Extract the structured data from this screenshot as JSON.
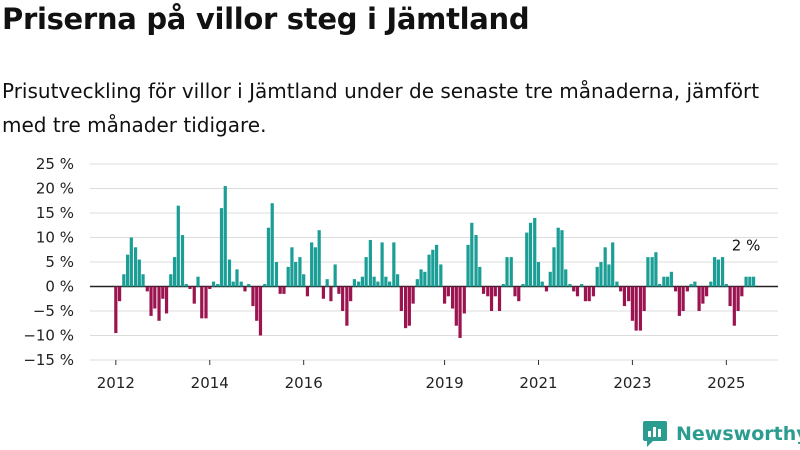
{
  "title": "Priserna på villor steg i Jämtland",
  "subtitle": "Prisutveckling för villor i Jämtland under de senaste tre månaderna, jämfört med tre månader tidigare.",
  "brand": {
    "name": "Newsworthy",
    "icon": "newsworthy-logo-icon"
  },
  "colors": {
    "positive": "#1a9e96",
    "negative": "#9b1450",
    "grid": "#dcdcdc",
    "zero_line": "#222222"
  },
  "chart_data": {
    "type": "bar",
    "unit": "%",
    "ylim": [
      -15,
      25
    ],
    "y_ticks": [
      {
        "value": 25,
        "label": "25 %"
      },
      {
        "value": 20,
        "label": "20 %"
      },
      {
        "value": 15,
        "label": "15 %"
      },
      {
        "value": 10,
        "label": "10 %"
      },
      {
        "value": 5,
        "label": "5 %"
      },
      {
        "value": 0,
        "label": "0 %"
      },
      {
        "value": -5,
        "label": "−5 %"
      },
      {
        "value": -10,
        "label": "−10 %"
      },
      {
        "value": -15,
        "label": "−15 %"
      }
    ],
    "x_ticks": [
      {
        "value": 2012,
        "label": "2012"
      },
      {
        "value": 2014,
        "label": "2014"
      },
      {
        "value": 2016,
        "label": "2016"
      },
      {
        "value": 2019,
        "label": "2019"
      },
      {
        "value": 2021,
        "label": "2021"
      },
      {
        "value": 2023,
        "label": "2023"
      },
      {
        "value": 2025,
        "label": "2025"
      }
    ],
    "x_range": [
      2011.45,
      2026.1
    ],
    "grid": true,
    "annotation": {
      "x": 2025.25,
      "y": 2,
      "label": "2 %"
    },
    "series": [
      {
        "x": 2012.0,
        "y": -9.5
      },
      {
        "x": 2012.08,
        "y": -3.0
      },
      {
        "x": 2012.17,
        "y": 2.5
      },
      {
        "x": 2012.25,
        "y": 6.5
      },
      {
        "x": 2012.33,
        "y": 10.0
      },
      {
        "x": 2012.42,
        "y": 8.0
      },
      {
        "x": 2012.5,
        "y": 5.5
      },
      {
        "x": 2012.58,
        "y": 2.5
      },
      {
        "x": 2012.67,
        "y": -1.0
      },
      {
        "x": 2012.75,
        "y": -6.0
      },
      {
        "x": 2012.83,
        "y": -4.5
      },
      {
        "x": 2012.92,
        "y": -7.0
      },
      {
        "x": 2013.0,
        "y": -2.5
      },
      {
        "x": 2013.08,
        "y": -5.5
      },
      {
        "x": 2013.17,
        "y": 2.5
      },
      {
        "x": 2013.25,
        "y": 6.0
      },
      {
        "x": 2013.33,
        "y": 16.5
      },
      {
        "x": 2013.42,
        "y": 10.5
      },
      {
        "x": 2013.5,
        "y": 0.5
      },
      {
        "x": 2013.58,
        "y": -0.5
      },
      {
        "x": 2013.67,
        "y": -3.5
      },
      {
        "x": 2013.75,
        "y": 2.0
      },
      {
        "x": 2013.83,
        "y": -6.5
      },
      {
        "x": 2013.92,
        "y": -6.5
      },
      {
        "x": 2014.0,
        "y": -0.5
      },
      {
        "x": 2014.08,
        "y": 1.0
      },
      {
        "x": 2014.17,
        "y": 0.5
      },
      {
        "x": 2014.25,
        "y": 16.0
      },
      {
        "x": 2014.33,
        "y": 20.5
      },
      {
        "x": 2014.42,
        "y": 5.5
      },
      {
        "x": 2014.5,
        "y": 1.0
      },
      {
        "x": 2014.58,
        "y": 3.5
      },
      {
        "x": 2014.67,
        "y": 1.0
      },
      {
        "x": 2014.75,
        "y": -1.0
      },
      {
        "x": 2014.83,
        "y": 0.5
      },
      {
        "x": 2014.92,
        "y": -4.0
      },
      {
        "x": 2015.0,
        "y": -7.0
      },
      {
        "x": 2015.08,
        "y": -10.0
      },
      {
        "x": 2015.17,
        "y": 0.5
      },
      {
        "x": 2015.25,
        "y": 12.0
      },
      {
        "x": 2015.33,
        "y": 17.0
      },
      {
        "x": 2015.42,
        "y": 5.0
      },
      {
        "x": 2015.5,
        "y": -1.5
      },
      {
        "x": 2015.58,
        "y": -1.5
      },
      {
        "x": 2015.67,
        "y": 4.0
      },
      {
        "x": 2015.75,
        "y": 8.0
      },
      {
        "x": 2015.83,
        "y": 5.0
      },
      {
        "x": 2015.92,
        "y": 6.0
      },
      {
        "x": 2016.0,
        "y": 2.5
      },
      {
        "x": 2016.08,
        "y": -2.0
      },
      {
        "x": 2016.17,
        "y": 9.0
      },
      {
        "x": 2016.25,
        "y": 8.0
      },
      {
        "x": 2016.33,
        "y": 11.5
      },
      {
        "x": 2016.42,
        "y": -2.5
      },
      {
        "x": 2016.5,
        "y": 1.5
      },
      {
        "x": 2016.58,
        "y": -3.0
      },
      {
        "x": 2016.67,
        "y": 4.5
      },
      {
        "x": 2016.75,
        "y": -1.5
      },
      {
        "x": 2016.83,
        "y": -5.0
      },
      {
        "x": 2016.92,
        "y": -8.0
      },
      {
        "x": 2017.0,
        "y": -3.0
      },
      {
        "x": 2017.08,
        "y": 1.5
      },
      {
        "x": 2017.17,
        "y": 1.0
      },
      {
        "x": 2017.25,
        "y": 2.0
      },
      {
        "x": 2017.33,
        "y": 6.0
      },
      {
        "x": 2017.42,
        "y": 9.5
      },
      {
        "x": 2017.5,
        "y": 2.0
      },
      {
        "x": 2017.58,
        "y": 1.0
      },
      {
        "x": 2017.67,
        "y": 9.0
      },
      {
        "x": 2017.75,
        "y": 2.0
      },
      {
        "x": 2017.83,
        "y": 1.0
      },
      {
        "x": 2017.92,
        "y": 9.0
      },
      {
        "x": 2018.0,
        "y": 2.5
      },
      {
        "x": 2018.08,
        "y": -5.0
      },
      {
        "x": 2018.17,
        "y": -8.5
      },
      {
        "x": 2018.25,
        "y": -8.0
      },
      {
        "x": 2018.33,
        "y": -3.5
      },
      {
        "x": 2018.42,
        "y": 1.5
      },
      {
        "x": 2018.5,
        "y": 3.5
      },
      {
        "x": 2018.58,
        "y": 3.0
      },
      {
        "x": 2018.67,
        "y": 6.5
      },
      {
        "x": 2018.75,
        "y": 7.5
      },
      {
        "x": 2018.83,
        "y": 8.5
      },
      {
        "x": 2018.92,
        "y": 4.5
      },
      {
        "x": 2019.0,
        "y": -3.5
      },
      {
        "x": 2019.08,
        "y": -2.0
      },
      {
        "x": 2019.17,
        "y": -4.5
      },
      {
        "x": 2019.25,
        "y": -8.0
      },
      {
        "x": 2019.33,
        "y": -10.5
      },
      {
        "x": 2019.42,
        "y": -5.5
      },
      {
        "x": 2019.5,
        "y": 8.5
      },
      {
        "x": 2019.58,
        "y": 13.0
      },
      {
        "x": 2019.67,
        "y": 10.5
      },
      {
        "x": 2019.75,
        "y": 4.0
      },
      {
        "x": 2019.83,
        "y": -1.5
      },
      {
        "x": 2019.92,
        "y": -2.0
      },
      {
        "x": 2020.0,
        "y": -5.0
      },
      {
        "x": 2020.08,
        "y": -2.0
      },
      {
        "x": 2020.17,
        "y": -5.0
      },
      {
        "x": 2020.25,
        "y": 0.5
      },
      {
        "x": 2020.33,
        "y": 6.0
      },
      {
        "x": 2020.42,
        "y": 6.0
      },
      {
        "x": 2020.5,
        "y": -2.0
      },
      {
        "x": 2020.58,
        "y": -3.0
      },
      {
        "x": 2020.67,
        "y": 0.5
      },
      {
        "x": 2020.75,
        "y": 11.0
      },
      {
        "x": 2020.83,
        "y": 13.0
      },
      {
        "x": 2020.92,
        "y": 14.0
      },
      {
        "x": 2021.0,
        "y": 5.0
      },
      {
        "x": 2021.08,
        "y": 1.0
      },
      {
        "x": 2021.17,
        "y": -1.0
      },
      {
        "x": 2021.25,
        "y": 3.0
      },
      {
        "x": 2021.33,
        "y": 8.0
      },
      {
        "x": 2021.42,
        "y": 12.0
      },
      {
        "x": 2021.5,
        "y": 11.5
      },
      {
        "x": 2021.58,
        "y": 3.5
      },
      {
        "x": 2021.67,
        "y": 0.5
      },
      {
        "x": 2021.75,
        "y": -1.0
      },
      {
        "x": 2021.83,
        "y": -2.0
      },
      {
        "x": 2021.92,
        "y": 0.5
      },
      {
        "x": 2022.0,
        "y": -3.0
      },
      {
        "x": 2022.08,
        "y": -3.0
      },
      {
        "x": 2022.17,
        "y": -2.0
      },
      {
        "x": 2022.25,
        "y": 4.0
      },
      {
        "x": 2022.33,
        "y": 5.0
      },
      {
        "x": 2022.42,
        "y": 8.0
      },
      {
        "x": 2022.5,
        "y": 4.5
      },
      {
        "x": 2022.58,
        "y": 9.0
      },
      {
        "x": 2022.67,
        "y": 1.0
      },
      {
        "x": 2022.75,
        "y": -1.0
      },
      {
        "x": 2022.83,
        "y": -4.0
      },
      {
        "x": 2022.92,
        "y": -3.0
      },
      {
        "x": 2023.0,
        "y": -7.0
      },
      {
        "x": 2023.08,
        "y": -9.0
      },
      {
        "x": 2023.17,
        "y": -9.0
      },
      {
        "x": 2023.25,
        "y": -5.0
      },
      {
        "x": 2023.33,
        "y": 6.0
      },
      {
        "x": 2023.42,
        "y": 6.0
      },
      {
        "x": 2023.5,
        "y": 7.0
      },
      {
        "x": 2023.58,
        "y": 0.5
      },
      {
        "x": 2023.67,
        "y": 2.0
      },
      {
        "x": 2023.75,
        "y": 2.0
      },
      {
        "x": 2023.83,
        "y": 3.0
      },
      {
        "x": 2023.92,
        "y": -1.0
      },
      {
        "x": 2024.0,
        "y": -6.0
      },
      {
        "x": 2024.08,
        "y": -5.0
      },
      {
        "x": 2024.17,
        "y": -1.0
      },
      {
        "x": 2024.25,
        "y": 0.5
      },
      {
        "x": 2024.33,
        "y": 1.0
      },
      {
        "x": 2024.42,
        "y": -5.0
      },
      {
        "x": 2024.5,
        "y": -3.5
      },
      {
        "x": 2024.58,
        "y": -2.0
      },
      {
        "x": 2024.67,
        "y": 1.0
      },
      {
        "x": 2024.75,
        "y": 6.0
      },
      {
        "x": 2024.83,
        "y": 5.5
      },
      {
        "x": 2024.92,
        "y": 6.0
      },
      {
        "x": 2025.0,
        "y": 0.5
      },
      {
        "x": 2025.08,
        "y": -4.0
      },
      {
        "x": 2025.17,
        "y": -8.0
      },
      {
        "x": 2025.25,
        "y": -5.0
      },
      {
        "x": 2025.33,
        "y": -2.0
      },
      {
        "x": 2025.42,
        "y": 2.0
      },
      {
        "x": 2025.5,
        "y": 2.0
      },
      {
        "x": 2025.58,
        "y": 2.0
      }
    ]
  }
}
